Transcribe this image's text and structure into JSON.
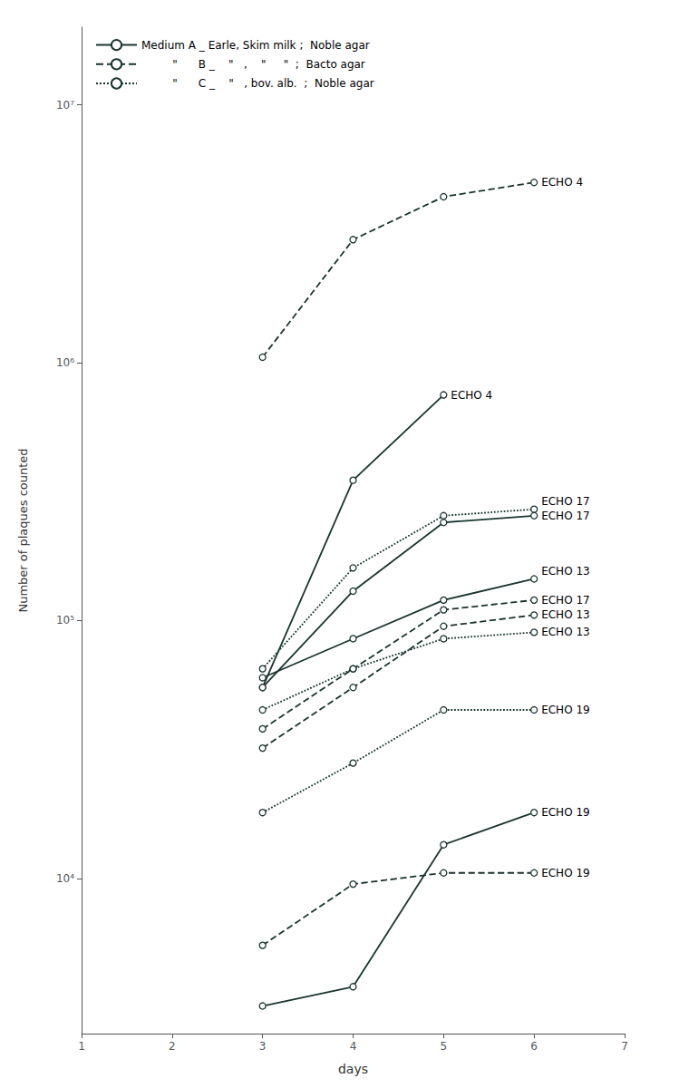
{
  "chart_data": {
    "type": "line",
    "xlabel": "days",
    "ylabel": "Number of plaques counted",
    "log": "y",
    "xlim": [
      1,
      7
    ],
    "xticks": [
      1,
      2,
      3,
      4,
      5,
      6,
      7
    ],
    "ylim": [
      2500,
      20000000.0
    ],
    "yticks": [
      {
        "value": 10000,
        "label": "10⁴"
      },
      {
        "value": 100000,
        "label": "10⁵"
      },
      {
        "value": 1000000,
        "label": "10⁶"
      },
      {
        "value": 10000000,
        "label": "10⁷"
      }
    ],
    "grid": false,
    "legend": "upper left",
    "color": "#1a3530",
    "marker": "circle",
    "series": [
      {
        "name": "         \"      B _    \"   ,    \"     \"  ;  Bacto agar",
        "line_style": "dashed",
        "x": [
          3,
          4,
          5,
          6
        ],
        "values": [
          1050000.0,
          3000000.0,
          4400000.0,
          5000000.0
        ],
        "annotation": {
          "text": "ECHO 4",
          "x": 6.08,
          "y": 5000000.0
        }
      },
      {
        "name": "Medium A _ Earle, Skim milk ;  Noble agar",
        "line_style": "solid",
        "x": [
          3,
          4,
          5
        ],
        "values": [
          55000.0,
          350000.0,
          750000.0
        ],
        "annotation": {
          "text": "ECHO 4",
          "x": 5.08,
          "y": 750000.0
        }
      },
      {
        "name": "         \"      C _    \"   , bov. alb.  ;  Noble agar",
        "line_style": "dotted",
        "x": [
          3,
          4,
          5,
          6
        ],
        "values": [
          65000.0,
          160000.0,
          255000.0,
          270000.0
        ],
        "annotation": {
          "text": "ECHO 17",
          "x": 6.08,
          "y": 290000.0
        }
      },
      {
        "name": "Medium A _ Earle, Skim milk ;  Noble agar",
        "line_style": "solid",
        "x": [
          3,
          4,
          5,
          6
        ],
        "values": [
          55000.0,
          130000.0,
          240000.0,
          255000.0
        ],
        "annotation": {
          "text": "ECHO 17",
          "x": 6.08,
          "y": 255000.0
        }
      },
      {
        "name": "Medium A _ Earle, Skim milk ;  Noble agar",
        "line_style": "solid",
        "x": [
          3,
          4,
          5,
          6
        ],
        "values": [
          60000.0,
          85000.0,
          120000.0,
          145000.0
        ],
        "annotation": {
          "text": "ECHO 13",
          "x": 6.08,
          "y": 155000.0
        }
      },
      {
        "name": "         \"      B _    \"   ,    \"     \"  ;  Bacto agar",
        "line_style": "dashed",
        "x": [
          3,
          4,
          5,
          6
        ],
        "values": [
          38000.0,
          65000.0,
          110000.0,
          120000.0
        ],
        "annotation": {
          "text": "ECHO 17",
          "x": 6.08,
          "y": 120000.0
        }
      },
      {
        "name": "         \"      B _    \"   ,    \"     \"  ;  Bacto agar",
        "line_style": "dashed",
        "x": [
          3,
          4,
          5,
          6
        ],
        "values": [
          32000.0,
          55000.0,
          95000.0,
          105000.0
        ],
        "annotation": {
          "text": "ECHO 13",
          "x": 6.08,
          "y": 105000.0
        }
      },
      {
        "name": "         \"      C _    \"   , bov. alb.  ;  Noble agar",
        "line_style": "dotted",
        "x": [
          3,
          4,
          5,
          6
        ],
        "values": [
          45000.0,
          65000.0,
          85000.0,
          90000.0
        ],
        "annotation": {
          "text": "ECHO 13",
          "x": 6.08,
          "y": 90000.0
        }
      },
      {
        "name": "         \"      C _    \"   , bov. alb.  ;  Noble agar",
        "line_style": "dotted",
        "x": [
          3,
          4,
          5,
          6
        ],
        "values": [
          18000.0,
          28000.0,
          45000.0,
          45000.0
        ],
        "annotation": {
          "text": "ECHO 19",
          "x": 6.08,
          "y": 45000.0
        }
      },
      {
        "name": "Medium A _ Earle, Skim milk ;  Noble agar",
        "line_style": "solid",
        "x": [
          3,
          4,
          5,
          6
        ],
        "values": [
          3200,
          3800,
          13500.0,
          18000.0
        ],
        "annotation": {
          "text": "ECHO 19",
          "x": 6.08,
          "y": 18000.0
        }
      },
      {
        "name": "         \"      B _    \"   ,    \"     \"  ;  Bacto agar",
        "line_style": "dashed",
        "x": [
          3,
          4,
          5,
          6
        ],
        "values": [
          5500,
          9500,
          10500.0,
          10500.0
        ],
        "annotation": {
          "text": "ECHO 19",
          "x": 6.08,
          "y": 10500.0
        }
      }
    ]
  }
}
